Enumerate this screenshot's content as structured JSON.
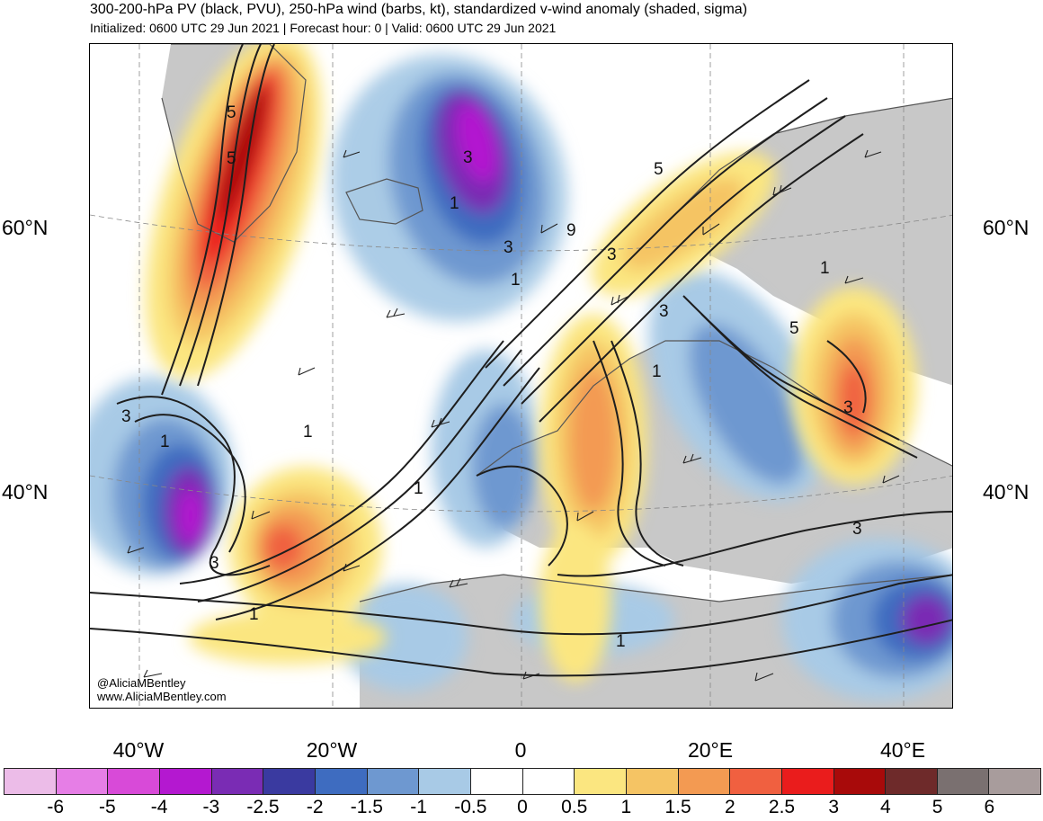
{
  "header": {
    "title": "300-200-hPa PV (black, PVU), 250-hPa wind (barbs, kt), standardized v-wind anomaly (shaded, sigma)",
    "subtitle": "Initialized: 0600 UTC 29 Jun 2021 | Forecast hour: 0 | Valid: 0600 UTC 29 Jun 2021"
  },
  "map": {
    "lat_labels": [
      "60°N",
      "40°N"
    ],
    "lon_labels": [
      "40°W",
      "20°W",
      "0",
      "20°E",
      "40°E"
    ],
    "pv_contour_labels": [
      "5",
      "5",
      "3",
      "1",
      "9",
      "3",
      "5",
      "3",
      "1",
      "3",
      "3",
      "1",
      "1",
      "3",
      "1",
      "1",
      "5",
      "3",
      "1",
      "1",
      "3",
      "1"
    ],
    "credit_handle": "@AliciaMBentley",
    "credit_site": "www.AliciaMBentley.com",
    "colors": {
      "land": "#c8c8c8",
      "ocean": "#ffffff",
      "pv_contour": "#1e1e1e"
    }
  },
  "colorbar": {
    "colors": [
      "#ecbce8",
      "#e67ee6",
      "#d84ad8",
      "#b418d0",
      "#7a2cb4",
      "#3a3aa0",
      "#3e6cc0",
      "#6e98d0",
      "#a8cae6",
      "#ffffff",
      "#ffffff",
      "#fbe680",
      "#f5c464",
      "#f39a52",
      "#f06040",
      "#ea1c1c",
      "#a80a0a",
      "#6e2a2a",
      "#7a7070",
      "#a89c9c"
    ],
    "labels": [
      "-6",
      "-5",
      "-4",
      "-3",
      "-2.5",
      "-2",
      "-1.5",
      "-1",
      "-0.5",
      "0",
      "0.5",
      "1",
      "1.5",
      "2",
      "2.5",
      "3",
      "4",
      "5",
      "6"
    ]
  }
}
